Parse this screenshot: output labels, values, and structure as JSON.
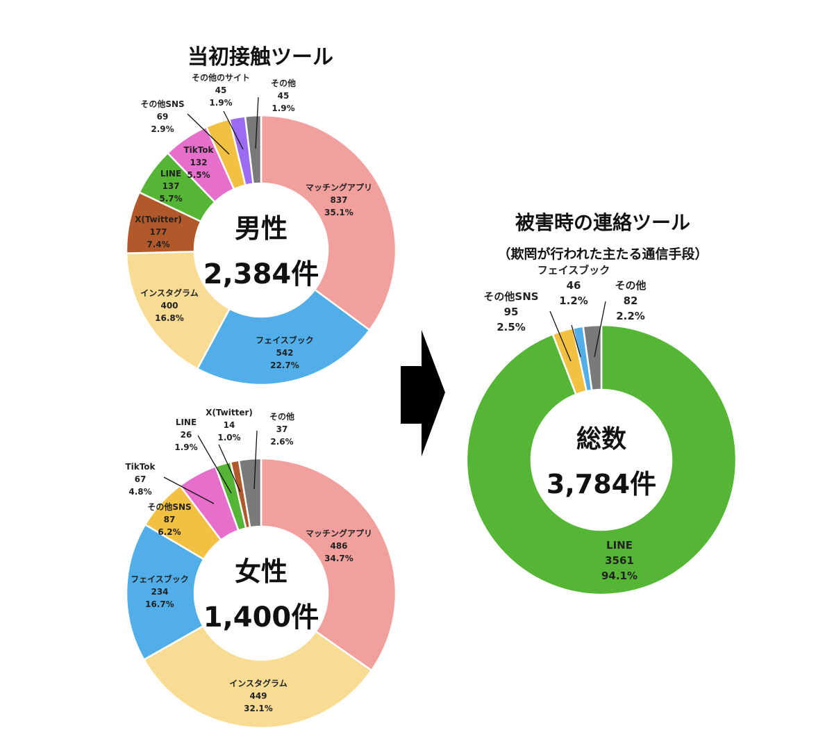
{
  "colors": {
    "matching_app": "#F2A09D",
    "facebook": "#52AEE9",
    "instagram": "#F8DC93",
    "x_twitter": "#B2592C",
    "line": "#55B534",
    "tiktok": "#E66FCB",
    "other_sns": "#F3C142",
    "other_site": "#9B6CF2",
    "other": "#7A7A7A"
  },
  "left_title": "当初接触ツール",
  "right_title": "被害時の連絡ツール",
  "right_subtitle": "（欺罔が行われた主たる通信手段）",
  "chart_data": [
    {
      "type": "pie",
      "center_label": "男性",
      "center_total": "2,384件",
      "total": 2384,
      "slices": [
        {
          "name": "マッチングアプリ",
          "value": 837,
          "percent": "35.1%"
        },
        {
          "name": "フェイスブック",
          "value": 542,
          "percent": "22.7%"
        },
        {
          "name": "インスタグラム",
          "value": 400,
          "percent": "16.8%"
        },
        {
          "name": "X(Twitter)",
          "value": 177,
          "percent": "7.4%"
        },
        {
          "name": "LINE",
          "value": 137,
          "percent": "5.7%"
        },
        {
          "name": "TikTok",
          "value": 132,
          "percent": "5.5%"
        },
        {
          "name": "その他SNS",
          "value": 69,
          "percent": "2.9%"
        },
        {
          "name": "その他のサイト",
          "value": 45,
          "percent": "1.9%"
        },
        {
          "name": "その他",
          "value": 45,
          "percent": "1.9%"
        }
      ]
    },
    {
      "type": "pie",
      "center_label": "女性",
      "center_total": "1,400件",
      "total": 1400,
      "slices": [
        {
          "name": "マッチングアプリ",
          "value": 486,
          "percent": "34.7%"
        },
        {
          "name": "インスタグラム",
          "value": 449,
          "percent": "32.1%"
        },
        {
          "name": "フェイスブック",
          "value": 234,
          "percent": "16.7%"
        },
        {
          "name": "その他SNS",
          "value": 87,
          "percent": "6.2%"
        },
        {
          "name": "TikTok",
          "value": 67,
          "percent": "4.8%"
        },
        {
          "name": "LINE",
          "value": 26,
          "percent": "1.9%"
        },
        {
          "name": "X(Twitter)",
          "value": 14,
          "percent": "1.0%"
        },
        {
          "name": "その他",
          "value": 37,
          "percent": "2.6%"
        }
      ]
    },
    {
      "type": "pie",
      "center_label": "総数",
      "center_total": "3,784件",
      "total": 3784,
      "slices": [
        {
          "name": "LINE",
          "value": 3561,
          "percent": "94.1%"
        },
        {
          "name": "その他SNS",
          "value": 95,
          "percent": "2.5%"
        },
        {
          "name": "フェイスブック",
          "value": 46,
          "percent": "1.2%"
        },
        {
          "name": "その他",
          "value": 82,
          "percent": "2.2%"
        }
      ]
    }
  ]
}
